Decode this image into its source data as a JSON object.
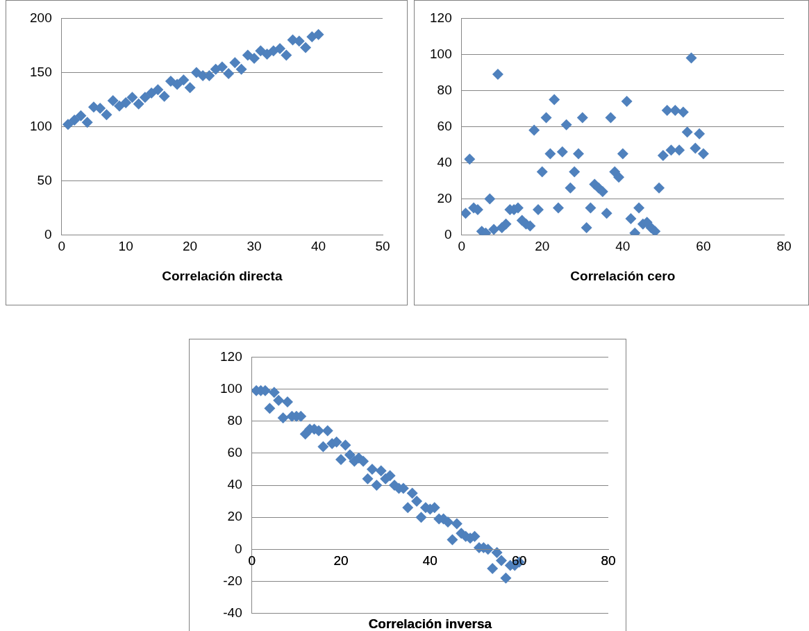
{
  "chart_data": [
    {
      "type": "scatter",
      "xlabel": "Correlación directa",
      "marker": "diamond",
      "grid": "y",
      "legend": false,
      "xlim": [
        0,
        50
      ],
      "xticks": [
        0,
        10,
        20,
        30,
        40,
        50
      ],
      "ylim": [
        0,
        200
      ],
      "yticks": [
        0,
        50,
        100,
        150,
        200
      ],
      "series": [
        {
          "color": "#4f81bd",
          "x": [
            1,
            2,
            3,
            4,
            5,
            6,
            7,
            8,
            9,
            10,
            11,
            12,
            13,
            14,
            15,
            16,
            17,
            18,
            19,
            20,
            21,
            22,
            23,
            24,
            25,
            26,
            27,
            28,
            29,
            30,
            31,
            32,
            33,
            34,
            35,
            36,
            37,
            38,
            39,
            40
          ],
          "values": [
            102,
            106,
            110,
            104,
            118,
            117,
            111,
            124,
            119,
            122,
            127,
            121,
            127,
            131,
            134,
            128,
            142,
            139,
            143,
            136,
            150,
            147,
            147,
            153,
            155,
            149,
            159,
            153,
            166,
            163,
            170,
            167,
            170,
            172,
            166,
            180,
            179,
            173,
            183,
            185
          ]
        }
      ]
    },
    {
      "type": "scatter",
      "xlabel": "Correlación cero",
      "marker": "diamond",
      "grid": "y",
      "legend": false,
      "xlim": [
        0,
        80
      ],
      "xticks": [
        0,
        20,
        40,
        60,
        80
      ],
      "ylim": [
        0,
        120
      ],
      "yticks": [
        0,
        20,
        40,
        60,
        80,
        100,
        120
      ],
      "series": [
        {
          "color": "#4f81bd",
          "x": [
            1,
            2,
            3,
            4,
            5,
            6,
            7,
            8,
            9,
            10,
            11,
            12,
            13,
            14,
            15,
            16,
            17,
            18,
            19,
            20,
            21,
            22,
            23,
            24,
            25,
            26,
            27,
            28,
            29,
            30,
            31,
            32,
            33,
            34,
            35,
            36,
            37,
            38,
            39,
            40,
            41,
            42,
            43,
            44,
            45,
            46,
            47,
            48,
            49,
            50,
            51,
            52,
            53,
            54,
            55,
            56,
            57,
            58,
            59,
            60
          ],
          "values": [
            12,
            42,
            15,
            14,
            2,
            1,
            20,
            3,
            89,
            4,
            6,
            14,
            14,
            15,
            8,
            6,
            5,
            58,
            14,
            35,
            65,
            45,
            75,
            15,
            46,
            61,
            26,
            35,
            45,
            65,
            4,
            15,
            28,
            26,
            24,
            12,
            65,
            35,
            32,
            45,
            74,
            9,
            1,
            15,
            6,
            7,
            4,
            2,
            26,
            44,
            69,
            47,
            69,
            47,
            68,
            57,
            98,
            48,
            56,
            45
          ]
        }
      ]
    },
    {
      "type": "scatter",
      "xlabel": "Correlación inversa",
      "marker": "diamond",
      "grid": "y",
      "legend": false,
      "xlim": [
        0,
        80
      ],
      "xticks": [
        0,
        20,
        40,
        60,
        80
      ],
      "ylim": [
        -40,
        120
      ],
      "yticks": [
        -40,
        -20,
        0,
        20,
        40,
        60,
        80,
        100,
        120
      ],
      "series": [
        {
          "color": "#4f81bd",
          "x": [
            1,
            2,
            3,
            4,
            5,
            6,
            7,
            8,
            9,
            10,
            11,
            12,
            13,
            14,
            15,
            16,
            17,
            18,
            19,
            20,
            21,
            22,
            23,
            24,
            25,
            26,
            27,
            28,
            29,
            30,
            31,
            32,
            33,
            34,
            35,
            36,
            37,
            38,
            39,
            40,
            41,
            42,
            43,
            44,
            45,
            46,
            47,
            48,
            49,
            50,
            51,
            52,
            53,
            54,
            55,
            56,
            57,
            58,
            59,
            60
          ],
          "values": [
            99,
            99,
            99,
            88,
            98,
            93,
            82,
            92,
            83,
            83,
            83,
            72,
            75,
            75,
            74,
            64,
            74,
            66,
            67,
            56,
            65,
            59,
            55,
            57,
            55,
            44,
            50,
            40,
            49,
            44,
            46,
            40,
            38,
            38,
            26,
            35,
            30,
            20,
            26,
            25,
            26,
            19,
            19,
            17,
            6,
            16,
            10,
            8,
            7,
            8,
            1,
            1,
            0,
            -12,
            -2,
            -7,
            -18,
            -10,
            -10,
            -8
          ]
        }
      ]
    }
  ]
}
